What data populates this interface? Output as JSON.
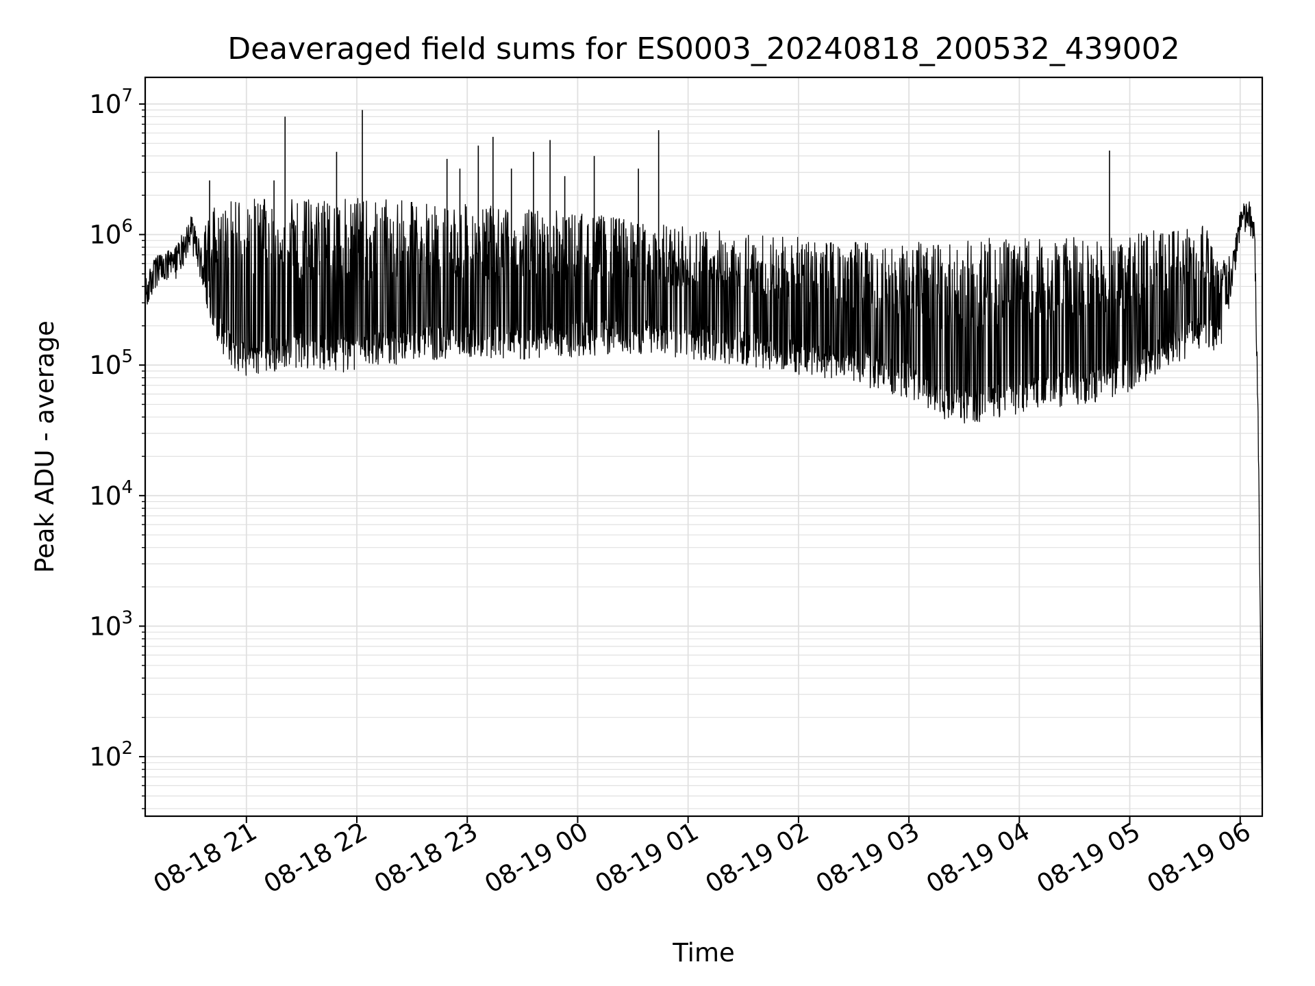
{
  "chart_data": {
    "type": "line",
    "title": "Deaveraged field sums for ES0003_20240818_200532_439002",
    "xlabel": "Time",
    "ylabel": "Peak ADU - average",
    "y_scale": "log",
    "ylim": [
      35,
      16000000
    ],
    "x_start": "2024-08-18 20:05",
    "x_end": "2024-08-19 06:12",
    "x_ticks": [
      "08-18 21",
      "08-18 22",
      "08-18 23",
      "08-19 00",
      "08-19 01",
      "08-19 02",
      "08-19 03",
      "08-19 04",
      "08-19 05",
      "08-19 06"
    ],
    "y_ticks": [
      {
        "base": "10",
        "exp": "2",
        "value": 100
      },
      {
        "base": "10",
        "exp": "3",
        "value": 1000
      },
      {
        "base": "10",
        "exp": "4",
        "value": 10000
      },
      {
        "base": "10",
        "exp": "5",
        "value": 100000
      },
      {
        "base": "10",
        "exp": "6",
        "value": 1000000
      },
      {
        "base": "10",
        "exp": "7",
        "value": 10000000
      }
    ],
    "grid": true,
    "line_color": "#000000",
    "grid_color": "#e0e0e0",
    "series": [
      {
        "time": [
          "2024-08-18 20:05",
          "2024-08-18 20:10",
          "2024-08-18 20:15",
          "2024-08-18 20:20",
          "2024-08-18 20:25",
          "2024-08-18 20:30",
          "2024-08-18 20:35",
          "2024-08-18 20:40",
          "2024-08-18 20:45",
          "2024-08-18 20:50",
          "2024-08-18 20:55",
          "2024-08-18 21:00",
          "2024-08-18 21:10",
          "2024-08-18 21:20",
          "2024-08-18 21:30",
          "2024-08-18 21:40",
          "2024-08-18 21:50",
          "2024-08-18 22:00",
          "2024-08-18 22:15",
          "2024-08-18 22:30",
          "2024-08-18 22:45",
          "2024-08-18 23:00",
          "2024-08-18 23:15",
          "2024-08-18 23:30",
          "2024-08-18 23:45",
          "2024-08-19 00:00",
          "2024-08-19 00:15",
          "2024-08-19 00:30",
          "2024-08-19 00:45",
          "2024-08-19 01:00",
          "2024-08-19 01:15",
          "2024-08-19 01:30",
          "2024-08-19 01:45",
          "2024-08-19 02:00",
          "2024-08-19 02:15",
          "2024-08-19 02:30",
          "2024-08-19 02:45",
          "2024-08-19 03:00",
          "2024-08-19 03:10",
          "2024-08-19 03:20",
          "2024-08-19 03:30",
          "2024-08-19 03:45",
          "2024-08-19 04:00",
          "2024-08-19 04:15",
          "2024-08-19 04:30",
          "2024-08-19 04:45",
          "2024-08-19 05:00",
          "2024-08-19 05:15",
          "2024-08-19 05:30",
          "2024-08-19 05:40",
          "2024-08-19 05:50",
          "2024-08-19 06:00",
          "2024-08-19 06:05",
          "2024-08-19 06:08",
          "2024-08-19 06:10",
          "2024-08-19 06:12"
        ],
        "base": [
          340000,
          520000,
          560000,
          600000,
          780000,
          1100000,
          650000,
          330000,
          200000,
          150000,
          120000,
          115000,
          125000,
          130000,
          135000,
          130000,
          125000,
          130000,
          140000,
          150000,
          155000,
          160000,
          155000,
          150000,
          160000,
          165000,
          170000,
          175000,
          165000,
          160000,
          150000,
          140000,
          130000,
          120000,
          110000,
          100000,
          90000,
          80000,
          60000,
          52000,
          50000,
          55000,
          60000,
          65000,
          70000,
          75000,
          90000,
          120000,
          160000,
          200000,
          150000,
          1300000,
          1400000,
          900000,
          20000,
          35
        ],
        "high": [
          340000,
          520000,
          560000,
          600000,
          780000,
          1100000,
          800000,
          1600000,
          1800000,
          1900000,
          1900000,
          1900000,
          1900000,
          1900000,
          1900000,
          1900000,
          1900000,
          1900000,
          1850000,
          1800000,
          1750000,
          1700000,
          1650000,
          1600000,
          1550000,
          1500000,
          1400000,
          1300000,
          1200000,
          1150000,
          1100000,
          1050000,
          1000000,
          950000,
          900000,
          900000,
          900000,
          900000,
          850000,
          850000,
          900000,
          950000,
          950000,
          950000,
          950000,
          950000,
          1000000,
          1100000,
          1200000,
          1300000,
          600000,
          1300000,
          1400000,
          900000,
          20000,
          35
        ],
        "spikes": [
          {
            "time": "2024-08-18 20:40",
            "value": 2600000
          },
          {
            "time": "2024-08-18 21:15",
            "value": 2600000
          },
          {
            "time": "2024-08-18 21:21",
            "value": 8000000
          },
          {
            "time": "2024-08-18 21:49",
            "value": 4300000
          },
          {
            "time": "2024-08-18 22:03",
            "value": 9000000
          },
          {
            "time": "2024-08-18 22:49",
            "value": 3800000
          },
          {
            "time": "2024-08-18 22:56",
            "value": 3200000
          },
          {
            "time": "2024-08-18 23:06",
            "value": 4800000
          },
          {
            "time": "2024-08-18 23:14",
            "value": 5600000
          },
          {
            "time": "2024-08-18 23:24",
            "value": 3200000
          },
          {
            "time": "2024-08-18 23:36",
            "value": 4300000
          },
          {
            "time": "2024-08-18 23:45",
            "value": 5300000
          },
          {
            "time": "2024-08-18 23:53",
            "value": 2800000
          },
          {
            "time": "2024-08-19 00:09",
            "value": 4000000
          },
          {
            "time": "2024-08-19 00:33",
            "value": 3200000
          },
          {
            "time": "2024-08-19 00:44",
            "value": 6300000
          },
          {
            "time": "2024-08-19 04:49",
            "value": 4400000
          }
        ]
      }
    ]
  }
}
